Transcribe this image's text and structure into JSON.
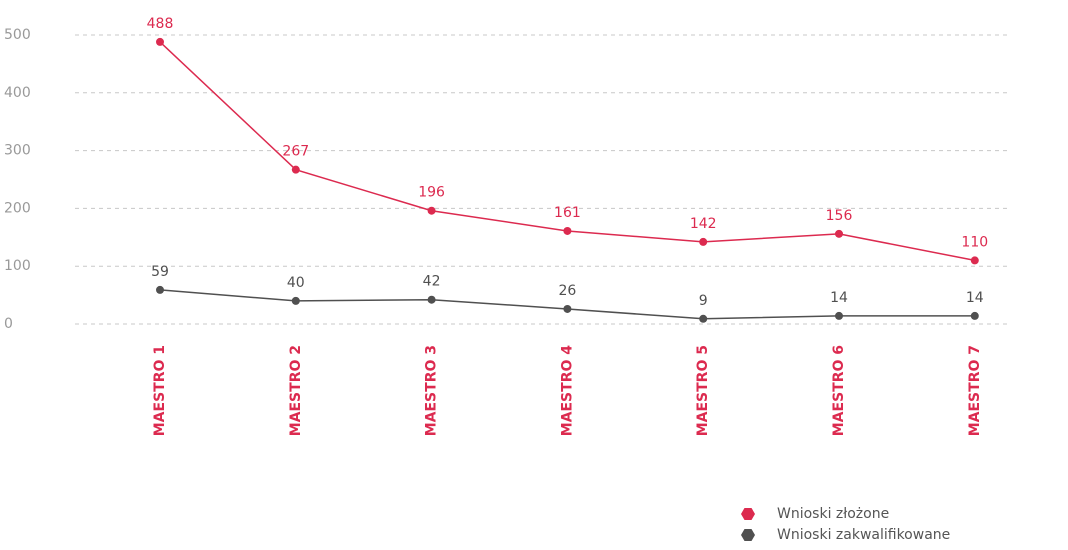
{
  "chart_data": {
    "type": "line",
    "categories": [
      "MAESTRO 1",
      "MAESTRO 2",
      "MAESTRO 3",
      "MAESTRO 4",
      "MAESTRO 5",
      "MAESTRO 6",
      "MAESTRO 7"
    ],
    "series": [
      {
        "name": "Wnioski złożone",
        "color": "#dc2a4f",
        "values": [
          488,
          267,
          196,
          161,
          142,
          156,
          110
        ]
      },
      {
        "name": "Wnioski zakwalifikowane",
        "color": "#505050",
        "values": [
          59,
          40,
          42,
          26,
          9,
          14,
          14
        ]
      }
    ],
    "ylim": [
      0,
      500
    ],
    "yticks": [
      0,
      100,
      200,
      300,
      400,
      500
    ],
    "grid": true,
    "legend": "bottom-right"
  }
}
